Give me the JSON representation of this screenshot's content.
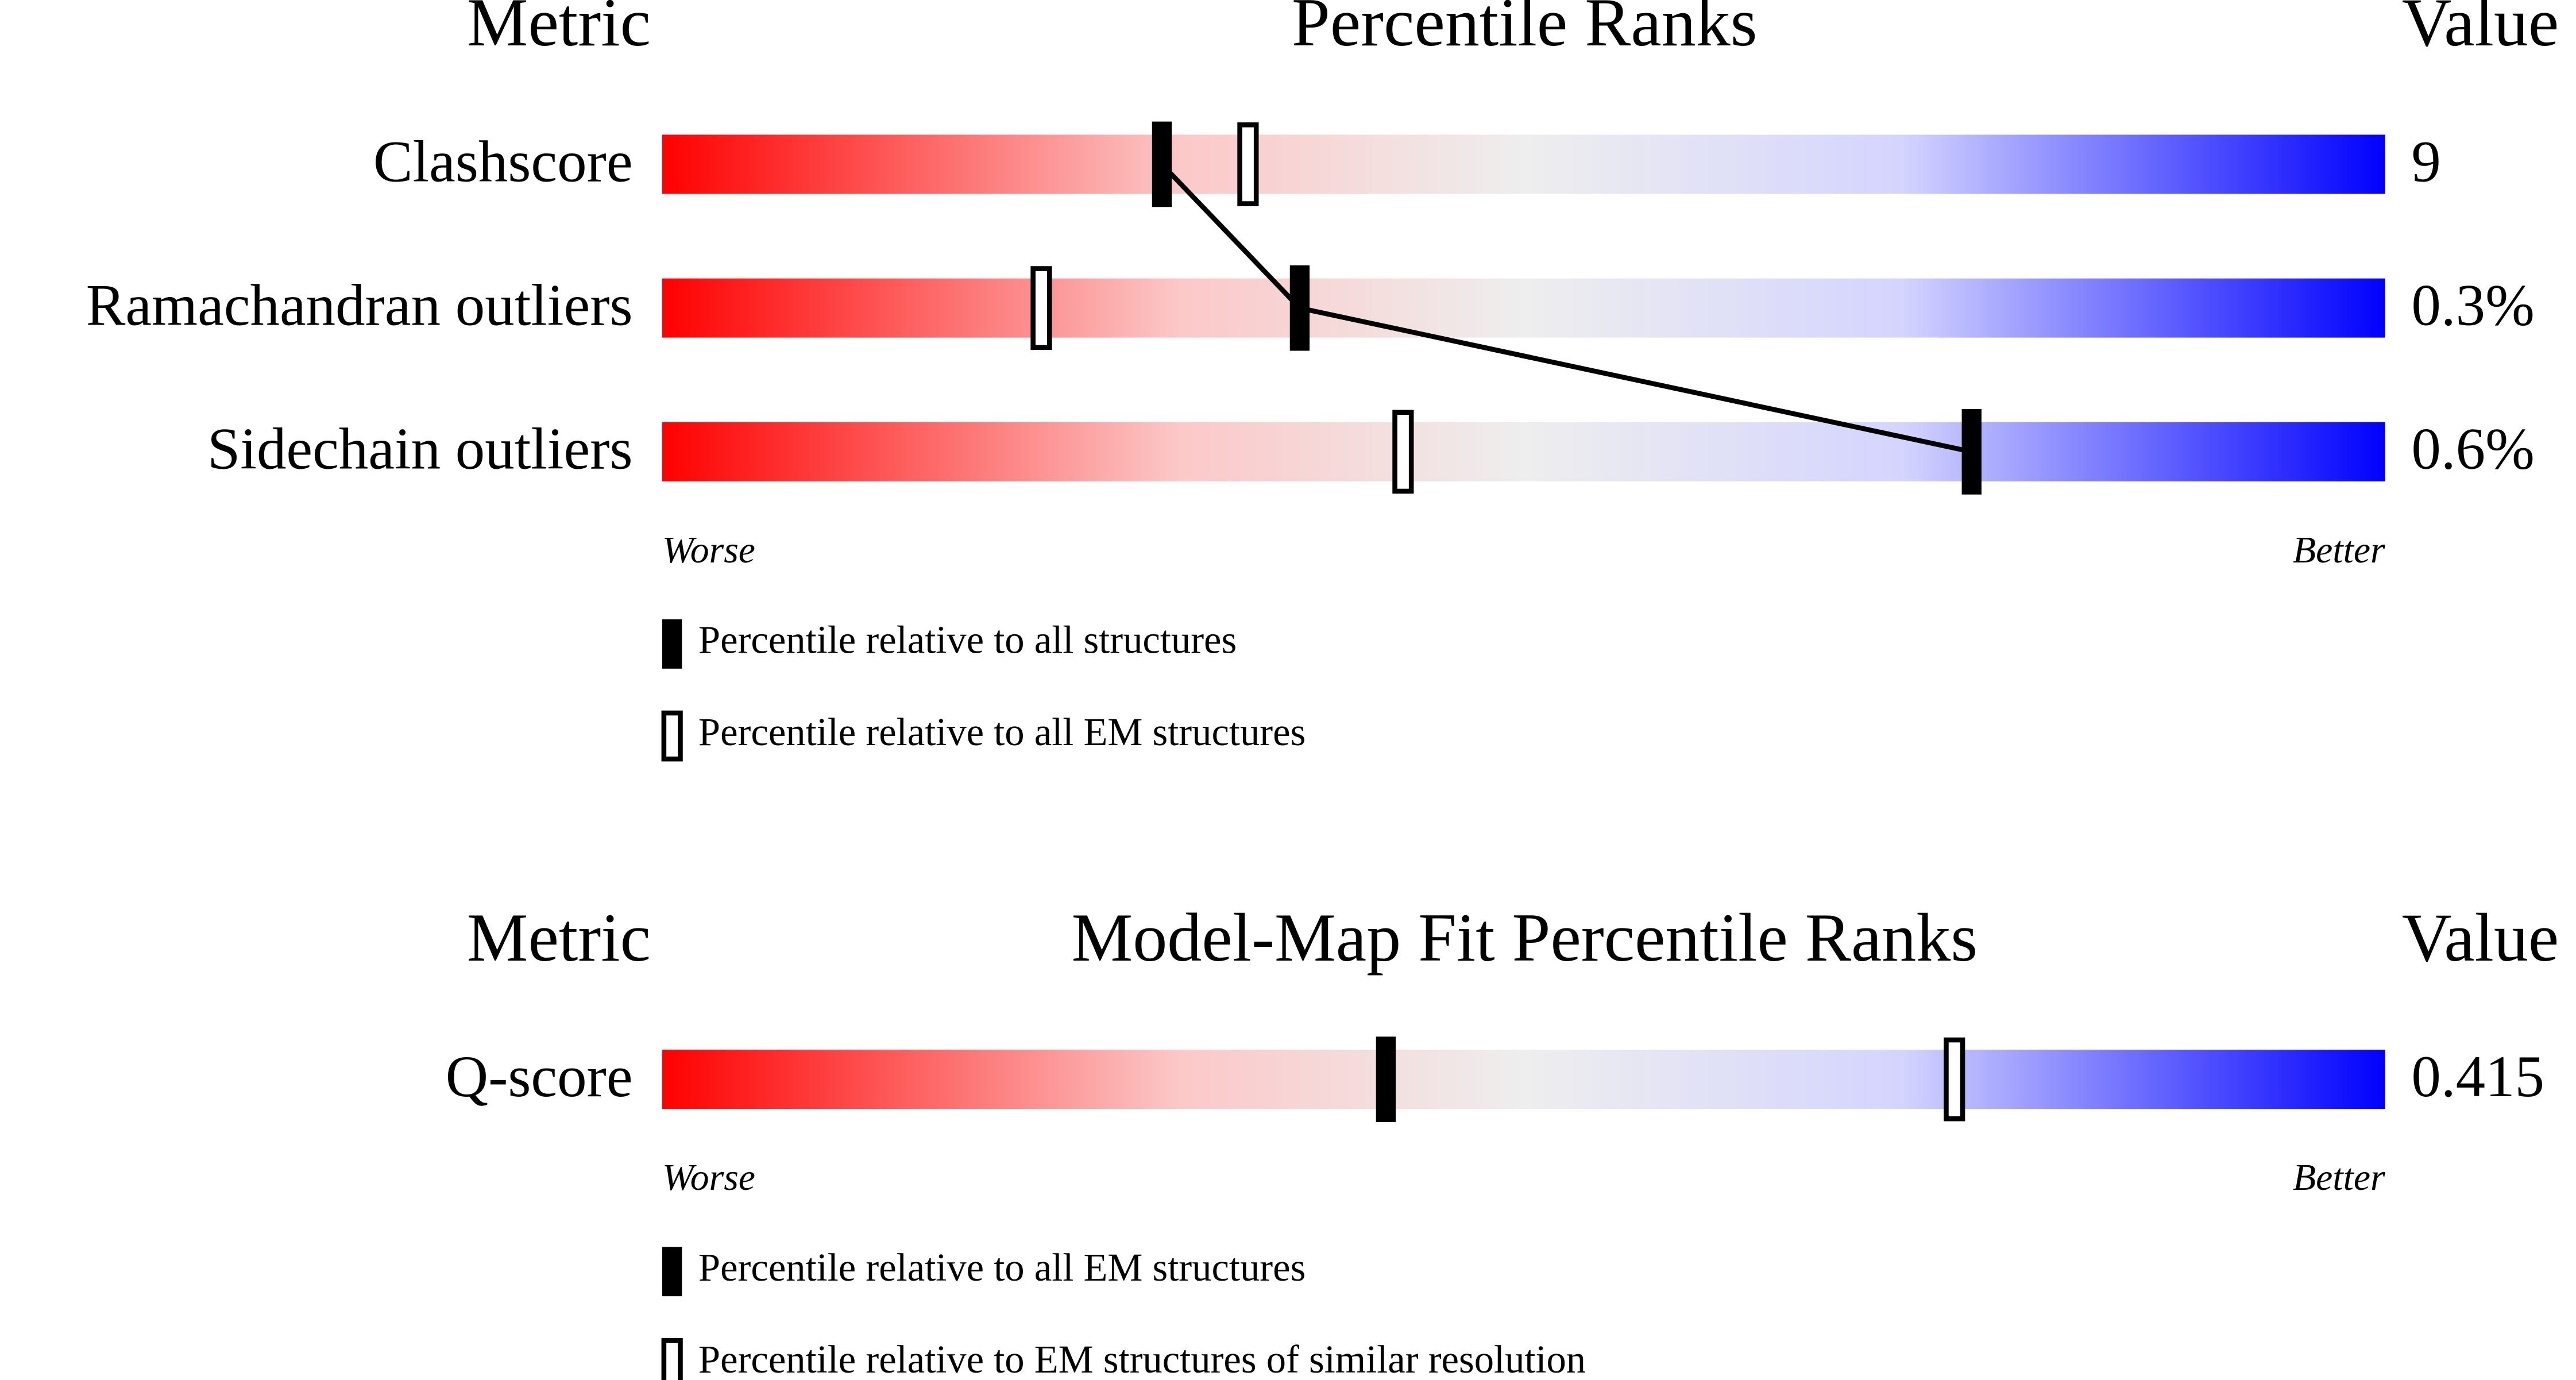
{
  "chart_data": [
    {
      "type": "percentile",
      "title": "Percentile Ranks",
      "left_header": "Metric",
      "right_header": "Value",
      "categories": [
        "Clashscore",
        "Ramachandran outliers",
        "Sidechain outliers"
      ],
      "metric_values": [
        "9",
        "0.3%",
        "0.6%"
      ],
      "series": [
        {
          "name": "Percentile relative to all structures",
          "marker": "filled",
          "connect": true,
          "color": "#000000",
          "values": [
            29,
            37,
            76
          ]
        },
        {
          "name": "Percentile relative to all EM structures",
          "marker": "open",
          "connect": false,
          "color": "#000000",
          "values": [
            34,
            22,
            43
          ]
        }
      ],
      "xlim": [
        0,
        100
      ],
      "x_start_label": "Worse",
      "x_end_label": "Better"
    },
    {
      "type": "percentile",
      "title": "Model-Map Fit Percentile Ranks",
      "left_header": "Metric",
      "right_header": "Value",
      "categories": [
        "Q-score"
      ],
      "metric_values": [
        "0.415"
      ],
      "series": [
        {
          "name": "Percentile relative to all EM structures",
          "marker": "filled",
          "connect": true,
          "color": "#000000",
          "values": [
            42
          ]
        },
        {
          "name": "Percentile relative to EM structures of similar resolution",
          "marker": "open",
          "connect": false,
          "color": "#000000",
          "values": [
            75
          ]
        }
      ],
      "xlim": [
        0,
        100
      ],
      "x_start_label": "Worse",
      "x_end_label": "Better"
    }
  ]
}
